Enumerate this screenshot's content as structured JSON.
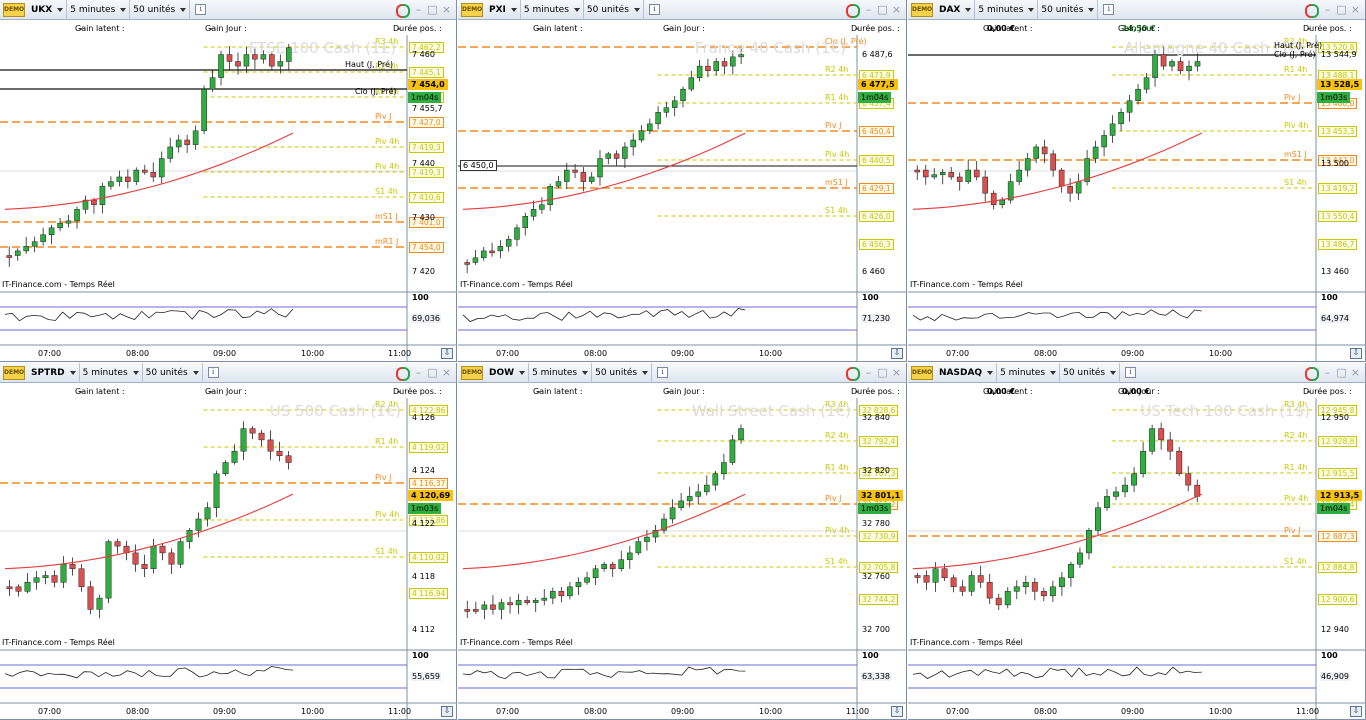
{
  "common": {
    "demo_badge": "DEMO",
    "gain_latent_label": "Gain latent :",
    "gain_jour_label": "Gain Jour :",
    "duree_label": "Durée pos. :",
    "duree_value": "-",
    "source": "IT-Finance.com - Temps Réel",
    "indicator_top": "100",
    "clo_label": "Clo (J, Pré)",
    "haut_label": "Haut (J, Pré)",
    "window_icons": [
      "refresh-icon",
      "minimize-icon",
      "maximize-icon",
      "close-icon"
    ],
    "colors": {
      "bull": "#2fae40",
      "bear": "#dc4f4f",
      "pivot4h": "#c8c800",
      "pivotJ": "#f08a1e",
      "ma": "#e83a3a",
      "price_badge": "#f7c10d",
      "timer_badge": "#2fae40",
      "ref_line": "#111111"
    }
  },
  "panes": [
    {
      "symbol": "UKX",
      "timeframe": "5 minutes",
      "units": "50 unités",
      "gain_latent": "-",
      "gain_jour": "-",
      "watermark": "FTSE 100 Cash (1£)",
      "y_ticks": [
        "7 460",
        "7 455,7",
        "7 440",
        "7 430",
        "7 420"
      ],
      "levels": [
        {
          "label": "R3 4h",
          "value": "7 462,2"
        },
        {
          "label": "R2 4h",
          "value": "7 445,1"
        },
        {
          "label": "R1 4h",
          "value": "7 436,4"
        },
        {
          "label": "Piv J",
          "value": "7 427,0"
        },
        {
          "label": "Piv 4h",
          "value": "7 419,3"
        },
        {
          "label": "Piv 4h",
          "value": "7 419,3"
        },
        {
          "label": "S1 4h",
          "value": "7 410,6"
        },
        {
          "label": "mS1 J",
          "value": "7 401,0"
        },
        {
          "label": "mR1 J",
          "value": "7 454,0"
        }
      ],
      "price": "7 454,0",
      "timer": "1m04s",
      "indicator": "69,036",
      "time_labels": [
        "07:00",
        "08:00",
        "09:00",
        "10:00",
        "11:00"
      ]
    },
    {
      "symbol": "PXI",
      "timeframe": "5 minutes",
      "units": "50 unités",
      "gain_latent": "-",
      "gain_jour": "-",
      "watermark": "France 40 Cash (1€)",
      "y_ticks": [
        "6 487,6",
        "6 460"
      ],
      "levels": [
        {
          "label": "Clo (J, Pré)",
          "value": ""
        },
        {
          "label": "R2 4h",
          "value": "6 471,9"
        },
        {
          "label": "R1 4h",
          "value": "6 457,4"
        },
        {
          "label": "Piv J",
          "value": "6 450,4"
        },
        {
          "label": "Piv 4h",
          "value": "6 440,5"
        },
        {
          "label": "mS1 J",
          "value": "6 429,1"
        },
        {
          "label": "S1 4h",
          "value": "6 426,0"
        },
        {
          "label": "",
          "value": "6 456,3"
        }
      ],
      "price": "6 477,5",
      "timer": "1m04s",
      "indicator": "71,230",
      "ref_box": "6 450,0",
      "time_labels": [
        "07:00",
        "08:00",
        "09:00",
        "10:00"
      ]
    },
    {
      "symbol": "DAX",
      "timeframe": "5 minutes",
      "units": "50 unités",
      "gain_latent": "0,00 €",
      "gain_jour": "14,50 €",
      "watermark": "Allemagne 40 Cash (1€)",
      "y_ticks": [
        "13 544,9",
        "13 500",
        "13 460"
      ],
      "levels": [
        {
          "label": "R2 4h",
          "value": "13 520,8"
        },
        {
          "label": "R1 4h",
          "value": "13 488,1"
        },
        {
          "label": "Piv J",
          "value": "13 480,0"
        },
        {
          "label": "Piv 4h",
          "value": "13 453,3"
        },
        {
          "label": "mS1 J",
          "value": "13 442,0"
        },
        {
          "label": "S1 4h",
          "value": "13 419,2"
        },
        {
          "label": "",
          "value": "13 550,4"
        },
        {
          "label": "",
          "value": "13 486,7"
        }
      ],
      "price": "13 528,5",
      "timer": "1m03s",
      "indicator": "64,974",
      "time_labels": [
        "07:00",
        "08:00",
        "09:00",
        "10:00"
      ]
    },
    {
      "symbol": "SPTRD",
      "timeframe": "5 minutes",
      "units": "50 unités",
      "gain_latent": "-",
      "gain_jour": "-",
      "watermark": "US 500 Cash (1€)",
      "y_ticks": [
        "4 126",
        "4 124",
        "4 122",
        "4 118",
        "4 112"
      ],
      "levels": [
        {
          "label": "R2 4h",
          "value": "4 122,86"
        },
        {
          "label": "R1 4h",
          "value": "4 119,02"
        },
        {
          "label": "Piv J",
          "value": "4 116,37"
        },
        {
          "label": "Piv 4h",
          "value": "4 113,86"
        },
        {
          "label": "S1 4h",
          "value": "4 110,02"
        },
        {
          "label": "",
          "value": "4 116,94"
        }
      ],
      "price": "4 120,69",
      "timer": "1m03s",
      "indicator": "55,659",
      "time_labels": [
        "07:00",
        "08:00",
        "09:00",
        "10:00",
        "11:00"
      ]
    },
    {
      "symbol": "DOW",
      "timeframe": "5 minutes",
      "units": "50 unités",
      "gain_latent": "-",
      "gain_jour": "-",
      "watermark": "Wall Street Cash (1€)",
      "y_ticks": [
        "32 840",
        "32 820",
        "32 780",
        "32 760",
        "32 700"
      ],
      "levels": [
        {
          "label": "R3 4h",
          "value": "32 828,6"
        },
        {
          "label": "R2 4h",
          "value": "32 792,4"
        },
        {
          "label": "R1 4h",
          "value": "32 767,3"
        },
        {
          "label": "Piv J",
          "value": "32 751,2"
        },
        {
          "label": "Piv 4h",
          "value": "32 730,9"
        },
        {
          "label": "S1 4h",
          "value": "32 705,8"
        },
        {
          "label": "",
          "value": "32 744,2"
        }
      ],
      "price": "32 801,1",
      "timer": "1m03s",
      "indicator": "63,338",
      "time_labels": [
        "07:00",
        "08:00",
        "09:00",
        "10:00",
        "11:00"
      ]
    },
    {
      "symbol": "NASDAQ",
      "timeframe": "5 minutes",
      "units": "50 unités",
      "gain_latent": "0,00 €",
      "gain_jour": "0,00 €",
      "watermark": "US Tech 100 Cash (1$)",
      "y_ticks": [
        "12 950",
        "12 940"
      ],
      "levels": [
        {
          "label": "R3 4h",
          "value": "12 945,8"
        },
        {
          "label": "R2 4h",
          "value": "12 928,8"
        },
        {
          "label": "R1 4h",
          "value": "12 915,5"
        },
        {
          "label": "Piv 4h",
          "value": "12 898,4"
        },
        {
          "label": "Piv J",
          "value": "12 887,3"
        },
        {
          "label": "S1 4h",
          "value": "12 884,8"
        },
        {
          "label": "",
          "value": "12 900,6"
        }
      ],
      "price": "12 913,5",
      "timer": "1m04s",
      "indicator": "46,909",
      "time_labels": [
        "07:00",
        "08:00",
        "09:00",
        "10:00",
        "11:00"
      ]
    }
  ]
}
